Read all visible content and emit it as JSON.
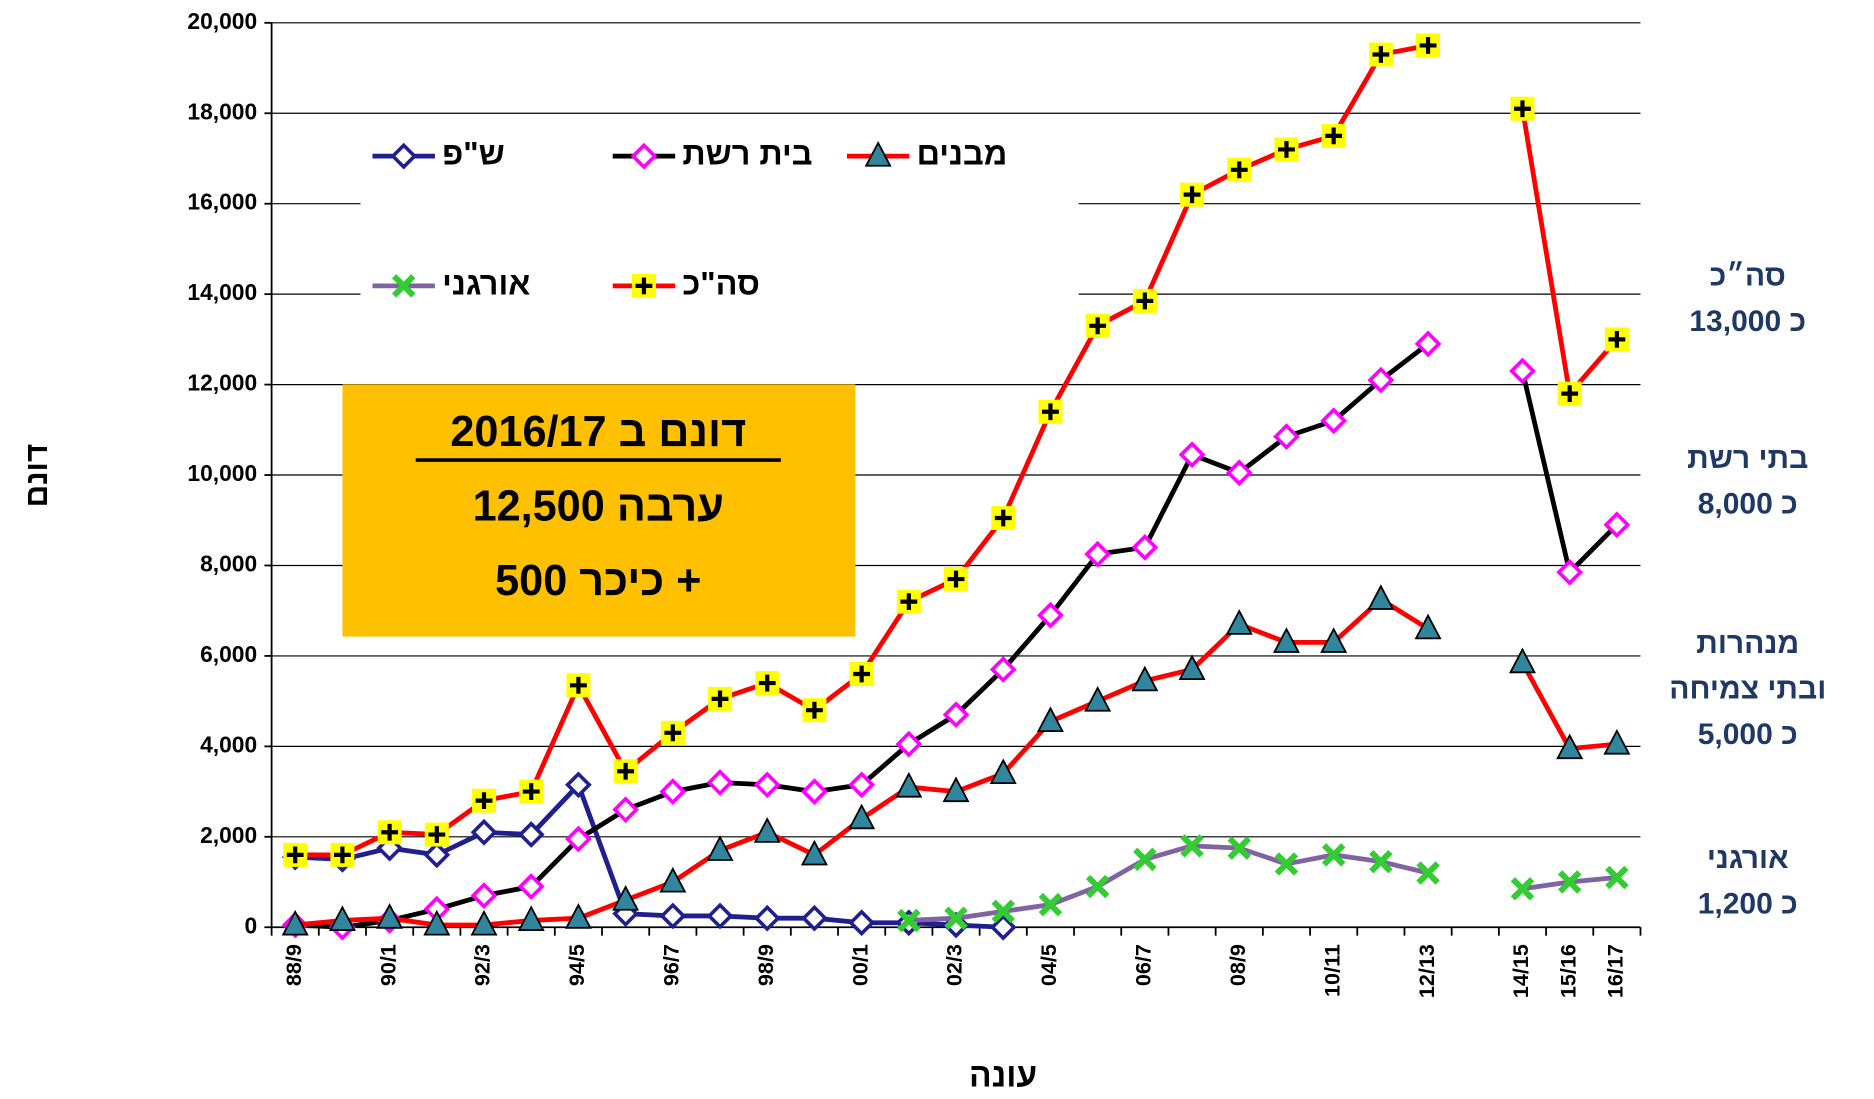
{
  "chart_data": {
    "type": "line",
    "y_label": "דונם",
    "x_label": "עונה",
    "categories": [
      "88/9",
      null,
      "90/1",
      null,
      "92/3",
      null,
      "94/5",
      null,
      "96/7",
      null,
      "98/9",
      null,
      "00/1",
      null,
      "02/3",
      null,
      "04/5",
      null,
      "06/7",
      null,
      "08/9",
      null,
      "10/11",
      null,
      "12/13",
      null,
      "14/15",
      "15/16",
      "16/17"
    ],
    "ylim": [
      0,
      20000
    ],
    "yticks": [
      0,
      {
        "value": 2000,
        "label": "2,000"
      },
      {
        "value": 4000,
        "label": "4,000"
      },
      {
        "value": 6000,
        "label": "6,000"
      },
      {
        "value": 8000,
        "label": "8,000"
      },
      {
        "value": 10000,
        "label": "10,000"
      },
      {
        "value": 12000,
        "label": "12,000"
      },
      {
        "value": 14000,
        "label": "14,000"
      },
      {
        "value": 16000,
        "label": "16,000"
      },
      {
        "value": 18000,
        "label": "18,000"
      },
      {
        "value": 20000,
        "label": "20,000"
      }
    ],
    "grid": true,
    "legend": "upper left",
    "series": [
      {
        "name": "ש\"פ",
        "color": "#1f1f8f",
        "marker": "diamond",
        "marker_color": "#1f1f8f",
        "values": [
          1550,
          1500,
          1750,
          1600,
          2100,
          2050,
          3150,
          300,
          250,
          250,
          200,
          200,
          100,
          100,
          50,
          0,
          null,
          null,
          null,
          null,
          null,
          null,
          null,
          null,
          null,
          null,
          null,
          null,
          null
        ]
      },
      {
        "name": "בית רשת",
        "color": "#000000",
        "marker": "diamond",
        "marker_color": "#ff00ff",
        "values": [
          50,
          0,
          150,
          400,
          700,
          900,
          1950,
          2600,
          3000,
          3200,
          3150,
          3000,
          3150,
          4050,
          4700,
          5700,
          6900,
          8250,
          8400,
          10450,
          10050,
          10850,
          11200,
          12100,
          12900,
          null,
          12300,
          7850,
          8900
        ]
      },
      {
        "name": "מבנים",
        "color": "#ff0000",
        "marker": "triangle",
        "marker_color": "#31859c",
        "values": [
          50,
          150,
          200,
          50,
          50,
          150,
          200,
          600,
          1000,
          1700,
          2100,
          1600,
          2400,
          3100,
          3000,
          3400,
          4550,
          5000,
          5450,
          5700,
          6700,
          6300,
          6300,
          7250,
          6600,
          null,
          5850,
          3950,
          4050
        ]
      },
      {
        "name": "אורגני",
        "color": "#8064a2",
        "marker": "x",
        "marker_color": "#33cc33",
        "values": [
          null,
          null,
          null,
          null,
          null,
          null,
          null,
          null,
          null,
          null,
          null,
          null,
          null,
          150,
          200,
          350,
          500,
          900,
          1500,
          1800,
          1750,
          1400,
          1600,
          1450,
          1200,
          null,
          850,
          1000,
          1100
        ]
      },
      {
        "name": "סה\"כ",
        "color": "#ff0000",
        "marker": "plus",
        "marker_color": "#ffff00",
        "values": [
          1600,
          1600,
          2100,
          2050,
          2800,
          3000,
          5350,
          3450,
          4300,
          5050,
          5400,
          4800,
          5600,
          7200,
          7700,
          9050,
          11400,
          13300,
          13850,
          16200,
          16750,
          17200,
          17500,
          19300,
          19500,
          null,
          18100,
          11800,
          13000
        ]
      }
    ],
    "callout": {
      "color": "#ffc000",
      "lines": [
        "דונם ב 2016/17",
        "ערבה 12,500",
        "+ כיכר 500"
      ]
    },
    "annotations": [
      {
        "lines": [
          "סה״כ",
          "כ 13,000"
        ]
      },
      {
        "lines": [
          "בתי רשת",
          "כ 8,000"
        ]
      },
      {
        "lines": [
          "מנהרות",
          "ובתי צמיחה",
          "כ 5,000"
        ]
      },
      {
        "lines": [
          "אורגני",
          "כ 1,200"
        ]
      }
    ]
  }
}
